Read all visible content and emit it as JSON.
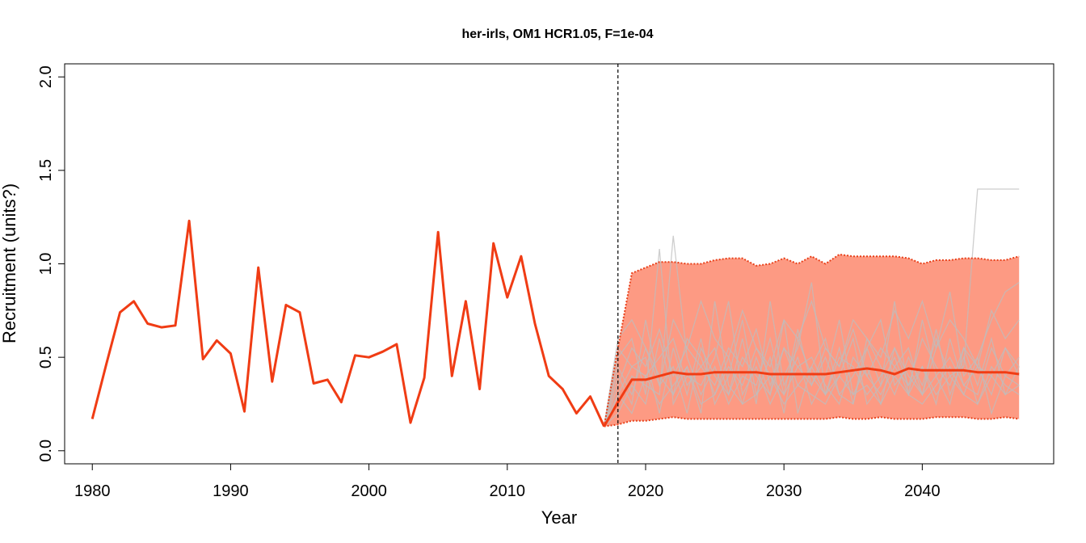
{
  "chart_data": {
    "type": "line",
    "title": "her-irls, OM1 HCR1.05, F=1e-04",
    "xlabel": "Year",
    "ylabel": "Recruitment (units?)",
    "xlim": [
      1978,
      2049.5
    ],
    "ylim": [
      -0.07,
      2.07
    ],
    "xticks": [
      1980,
      1990,
      2000,
      2010,
      2020,
      2030,
      2040
    ],
    "yticks": [
      0.0,
      0.5,
      1.0,
      1.5,
      2.0
    ],
    "xtick_labels": [
      "1980",
      "1990",
      "2000",
      "2010",
      "2020",
      "2030",
      "2040"
    ],
    "ytick_labels": [
      "0.0",
      "0.5",
      "1.0",
      "1.5",
      "2.0"
    ],
    "vline_x": 2018,
    "grid": false,
    "colors": {
      "historical": "#f03c14",
      "median": "#f03c14",
      "band_fill": "#fd9a83",
      "band_edge": "#e8401a",
      "iterations": "#bebebe"
    },
    "historical": {
      "x": [
        1980,
        1981,
        1982,
        1983,
        1984,
        1985,
        1986,
        1987,
        1988,
        1989,
        1990,
        1991,
        1992,
        1993,
        1994,
        1995,
        1996,
        1997,
        1998,
        1999,
        2000,
        2001,
        2002,
        2003,
        2004,
        2005,
        2006,
        2007,
        2008,
        2009,
        2010,
        2011,
        2012,
        2013,
        2014,
        2015,
        2016,
        2017
      ],
      "y": [
        0.17,
        0.46,
        0.74,
        0.8,
        0.68,
        0.66,
        0.67,
        1.23,
        0.49,
        0.59,
        0.52,
        0.21,
        0.98,
        0.37,
        0.78,
        0.74,
        0.36,
        0.38,
        0.26,
        0.51,
        0.5,
        0.53,
        0.57,
        0.15,
        0.39,
        1.17,
        0.4,
        0.8,
        0.33,
        1.11,
        0.82,
        1.04,
        0.68,
        0.4,
        0.33,
        0.2,
        0.29,
        0.13
      ]
    },
    "projection_years": [
      2017,
      2018,
      2019,
      2020,
      2021,
      2022,
      2023,
      2024,
      2025,
      2026,
      2027,
      2028,
      2029,
      2030,
      2031,
      2032,
      2033,
      2034,
      2035,
      2036,
      2037,
      2038,
      2039,
      2040,
      2041,
      2042,
      2043,
      2044,
      2045,
      2046,
      2047
    ],
    "median": [
      0.13,
      0.26,
      0.38,
      0.38,
      0.4,
      0.42,
      0.41,
      0.41,
      0.42,
      0.42,
      0.42,
      0.42,
      0.41,
      0.41,
      0.41,
      0.41,
      0.41,
      0.42,
      0.43,
      0.44,
      0.43,
      0.41,
      0.44,
      0.43,
      0.43,
      0.43,
      0.43,
      0.42,
      0.42,
      0.42,
      0.41
    ],
    "upper": [
      0.13,
      0.55,
      0.95,
      0.98,
      1.01,
      1.01,
      1.0,
      1.0,
      1.02,
      1.03,
      1.03,
      0.99,
      1.0,
      1.03,
      1.0,
      1.04,
      1.0,
      1.05,
      1.04,
      1.04,
      1.04,
      1.04,
      1.03,
      1.0,
      1.02,
      1.02,
      1.03,
      1.03,
      1.02,
      1.02,
      1.04
    ],
    "lower": [
      0.13,
      0.14,
      0.16,
      0.16,
      0.17,
      0.18,
      0.17,
      0.17,
      0.17,
      0.17,
      0.17,
      0.17,
      0.17,
      0.17,
      0.17,
      0.17,
      0.17,
      0.18,
      0.17,
      0.17,
      0.18,
      0.17,
      0.17,
      0.17,
      0.18,
      0.18,
      0.18,
      0.17,
      0.17,
      0.18,
      0.17
    ],
    "iterations": [
      [
        0.13,
        0.3,
        0.45,
        0.5,
        0.2,
        0.55,
        0.3,
        0.6,
        0.25,
        0.4,
        0.7,
        0.3,
        0.5,
        0.2,
        0.6,
        0.4,
        0.3,
        0.55,
        0.25,
        0.6,
        0.45,
        0.3,
        0.5,
        0.35,
        0.6,
        0.4,
        0.3,
        0.5,
        0.2,
        0.4,
        0.35
      ],
      [
        0.13,
        0.2,
        0.35,
        0.25,
        0.6,
        0.3,
        0.45,
        0.2,
        0.8,
        0.35,
        0.25,
        0.5,
        0.3,
        0.7,
        0.2,
        0.45,
        0.6,
        0.3,
        0.25,
        0.55,
        0.35,
        0.8,
        0.3,
        0.45,
        0.25,
        0.6,
        0.35,
        0.45,
        0.3,
        0.55,
        0.4
      ],
      [
        0.13,
        0.4,
        0.25,
        0.7,
        0.35,
        0.45,
        0.2,
        0.55,
        0.4,
        0.3,
        0.6,
        0.25,
        0.8,
        0.35,
        0.5,
        0.25,
        0.4,
        0.7,
        0.3,
        0.45,
        0.25,
        0.55,
        0.4,
        0.3,
        0.65,
        0.3,
        0.5,
        0.25,
        0.45,
        0.35,
        0.3
      ],
      [
        0.13,
        0.5,
        0.6,
        0.3,
        1.08,
        0.25,
        0.4,
        0.35,
        0.5,
        0.8,
        0.3,
        0.45,
        0.25,
        0.4,
        0.55,
        0.9,
        0.3,
        0.4,
        0.6,
        0.25,
        0.35,
        0.5,
        0.3,
        0.7,
        0.4,
        0.25,
        0.55,
        0.35,
        0.6,
        0.3,
        0.45
      ],
      [
        0.13,
        0.25,
        0.4,
        0.35,
        0.3,
        1.15,
        0.5,
        0.3,
        0.45,
        0.25,
        0.4,
        0.35,
        0.6,
        0.3,
        0.45,
        0.5,
        0.35,
        0.25,
        0.5,
        0.4,
        0.3,
        0.45,
        0.55,
        0.3,
        0.4,
        0.5,
        0.35,
        0.3,
        0.55,
        0.4,
        0.5
      ],
      [
        0.13,
        0.35,
        0.55,
        0.45,
        0.65,
        0.4,
        0.55,
        0.45,
        0.35,
        0.55,
        0.45,
        0.65,
        0.35,
        0.55,
        0.45,
        0.35,
        0.55,
        0.45,
        0.65,
        0.4,
        0.55,
        0.45,
        0.35,
        0.6,
        0.45,
        0.35,
        0.55,
        0.45,
        0.4,
        0.55,
        0.45
      ],
      [
        0.13,
        0.45,
        0.3,
        0.55,
        0.4,
        0.3,
        0.6,
        0.5,
        0.3,
        0.45,
        0.35,
        0.55,
        0.4,
        0.3,
        0.65,
        0.35,
        0.5,
        0.3,
        0.4,
        0.55,
        0.7,
        0.35,
        0.45,
        0.3,
        0.55,
        0.85,
        0.4,
        0.5,
        0.7,
        0.85,
        0.9
      ],
      [
        0.13,
        0.55,
        0.45,
        0.4,
        0.5,
        0.6,
        0.35,
        0.45,
        0.55,
        0.3,
        0.5,
        0.4,
        0.3,
        0.55,
        0.35,
        0.45,
        0.3,
        0.5,
        0.45,
        0.3,
        0.4,
        0.55,
        0.35,
        0.45,
        0.3,
        0.4,
        0.45,
        1.4,
        1.4,
        1.4,
        1.4
      ],
      [
        0.13,
        0.3,
        0.2,
        0.4,
        0.25,
        0.35,
        0.45,
        0.25,
        0.3,
        0.5,
        0.25,
        0.3,
        0.4,
        0.25,
        0.35,
        0.3,
        0.25,
        0.4,
        0.3,
        0.35,
        0.25,
        0.4,
        0.3,
        0.25,
        0.35,
        0.45,
        0.3,
        0.25,
        0.4,
        0.3,
        0.35
      ],
      [
        0.13,
        0.6,
        0.7,
        0.55,
        0.35,
        0.7,
        0.55,
        0.8,
        0.6,
        0.5,
        0.75,
        0.55,
        0.45,
        0.7,
        0.6,
        0.8,
        0.55,
        0.45,
        0.7,
        0.6,
        0.5,
        0.75,
        0.6,
        0.8,
        0.55,
        0.7,
        0.6,
        0.45,
        0.75,
        0.6,
        0.7
      ]
    ]
  }
}
